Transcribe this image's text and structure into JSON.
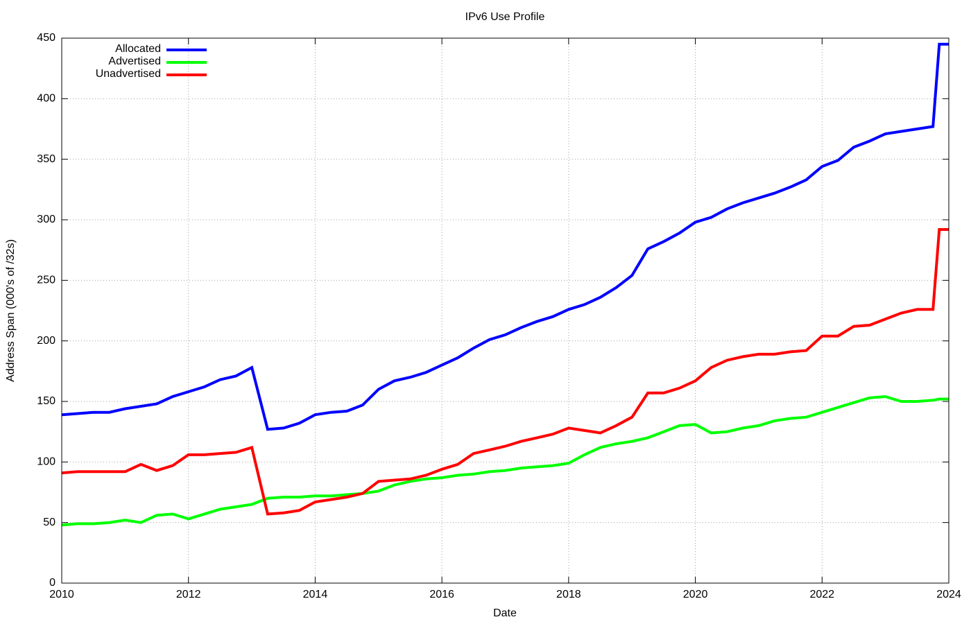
{
  "chart_data": {
    "type": "line",
    "title": "IPv6 Use Profile",
    "x_label": "Date",
    "y_label": "Address Span (000's of /32s)",
    "x": [
      2010,
      2010.25,
      2010.5,
      2010.75,
      2011,
      2011.25,
      2011.5,
      2011.75,
      2012,
      2012.25,
      2012.5,
      2012.75,
      2013,
      2013.25,
      2013.5,
      2013.75,
      2014,
      2014.25,
      2014.5,
      2014.75,
      2015,
      2015.25,
      2015.5,
      2015.75,
      2016,
      2016.25,
      2016.5,
      2016.75,
      2017,
      2017.25,
      2017.5,
      2017.75,
      2018,
      2018.25,
      2018.5,
      2018.75,
      2019,
      2019.25,
      2019.5,
      2019.75,
      2020,
      2020.25,
      2020.5,
      2020.75,
      2021,
      2021.25,
      2021.5,
      2021.75,
      2022,
      2022.25,
      2022.5,
      2022.75,
      2023,
      2023.25,
      2023.5,
      2023.75,
      2023.85,
      2024
    ],
    "series": [
      {
        "name": "Allocated",
        "color": "#0000ff",
        "values": [
          139,
          140,
          141,
          141,
          144,
          146,
          148,
          154,
          158,
          162,
          168,
          171,
          178,
          127,
          128,
          132,
          139,
          141,
          142,
          147,
          160,
          167,
          170,
          174,
          180,
          186,
          194,
          201,
          205,
          211,
          216,
          220,
          226,
          230,
          236,
          244,
          254,
          276,
          282,
          289,
          298,
          302,
          309,
          314,
          318,
          322,
          327,
          333,
          344,
          349,
          360,
          365,
          371,
          373,
          375,
          377,
          445,
          445
        ]
      },
      {
        "name": "Advertised",
        "color": "#00ff00",
        "values": [
          48,
          49,
          49,
          50,
          52,
          50,
          56,
          57,
          53,
          57,
          61,
          63,
          65,
          70,
          71,
          71,
          72,
          72,
          73,
          74,
          76,
          81,
          84,
          86,
          87,
          89,
          90,
          92,
          93,
          95,
          96,
          97,
          99,
          106,
          112,
          115,
          117,
          120,
          125,
          130,
          131,
          124,
          125,
          128,
          130,
          134,
          136,
          137,
          141,
          145,
          149,
          153,
          154,
          150,
          150,
          151,
          152,
          152
        ]
      },
      {
        "name": "Unadvertised",
        "color": "#ff0000",
        "values": [
          91,
          92,
          92,
          92,
          92,
          98,
          93,
          97,
          106,
          106,
          107,
          108,
          112,
          57,
          58,
          60,
          67,
          69,
          71,
          74,
          84,
          85,
          86,
          89,
          94,
          98,
          107,
          110,
          113,
          117,
          120,
          123,
          128,
          126,
          124,
          130,
          137,
          157,
          157,
          161,
          167,
          178,
          184,
          187,
          189,
          189,
          191,
          192,
          204,
          204,
          212,
          213,
          218,
          223,
          226,
          226,
          292,
          292
        ]
      }
    ],
    "xlim": [
      2010,
      2024
    ],
    "xticks": [
      2010,
      2012,
      2014,
      2016,
      2018,
      2020,
      2022,
      2024
    ],
    "ylim": [
      0,
      450
    ],
    "yticks": [
      0,
      50,
      100,
      150,
      200,
      250,
      300,
      350,
      400,
      450
    ],
    "grid": true,
    "legend": "top-left"
  }
}
